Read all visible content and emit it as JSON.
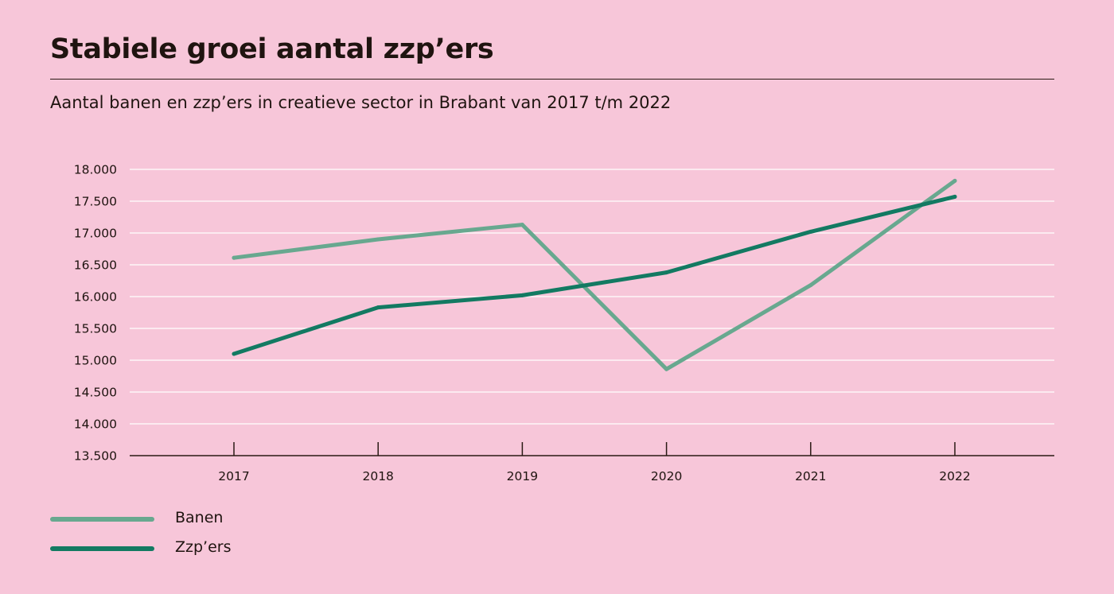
{
  "chart_data": {
    "type": "line",
    "title": "Stabiele groei aantal zzp’ers",
    "subtitle": "Aantal banen en zzp’ers in creatieve sector in Brabant van 2017 t/m 2022",
    "xlabel": "",
    "ylabel": "",
    "categories": [
      "2017",
      "2018",
      "2019",
      "2020",
      "2021",
      "2022"
    ],
    "ylim": [
      13500,
      18000
    ],
    "yticks": [
      13500,
      14000,
      14500,
      15000,
      15500,
      16000,
      16500,
      17000,
      17500,
      18000
    ],
    "ytick_labels": [
      "13.500",
      "14.000",
      "14.500",
      "15.000",
      "15.500",
      "16.000",
      "16.500",
      "17.000",
      "17.500",
      "18.000"
    ],
    "grid": true,
    "legend_position": "bottom-left",
    "series": [
      {
        "name": "Banen",
        "color": "#68a88f",
        "values": [
          16610,
          16900,
          17130,
          14860,
          16180,
          17820
        ]
      },
      {
        "name": "Zzp’ers",
        "color": "#137a62",
        "values": [
          15100,
          15830,
          16020,
          16380,
          17020,
          17570
        ]
      }
    ]
  }
}
